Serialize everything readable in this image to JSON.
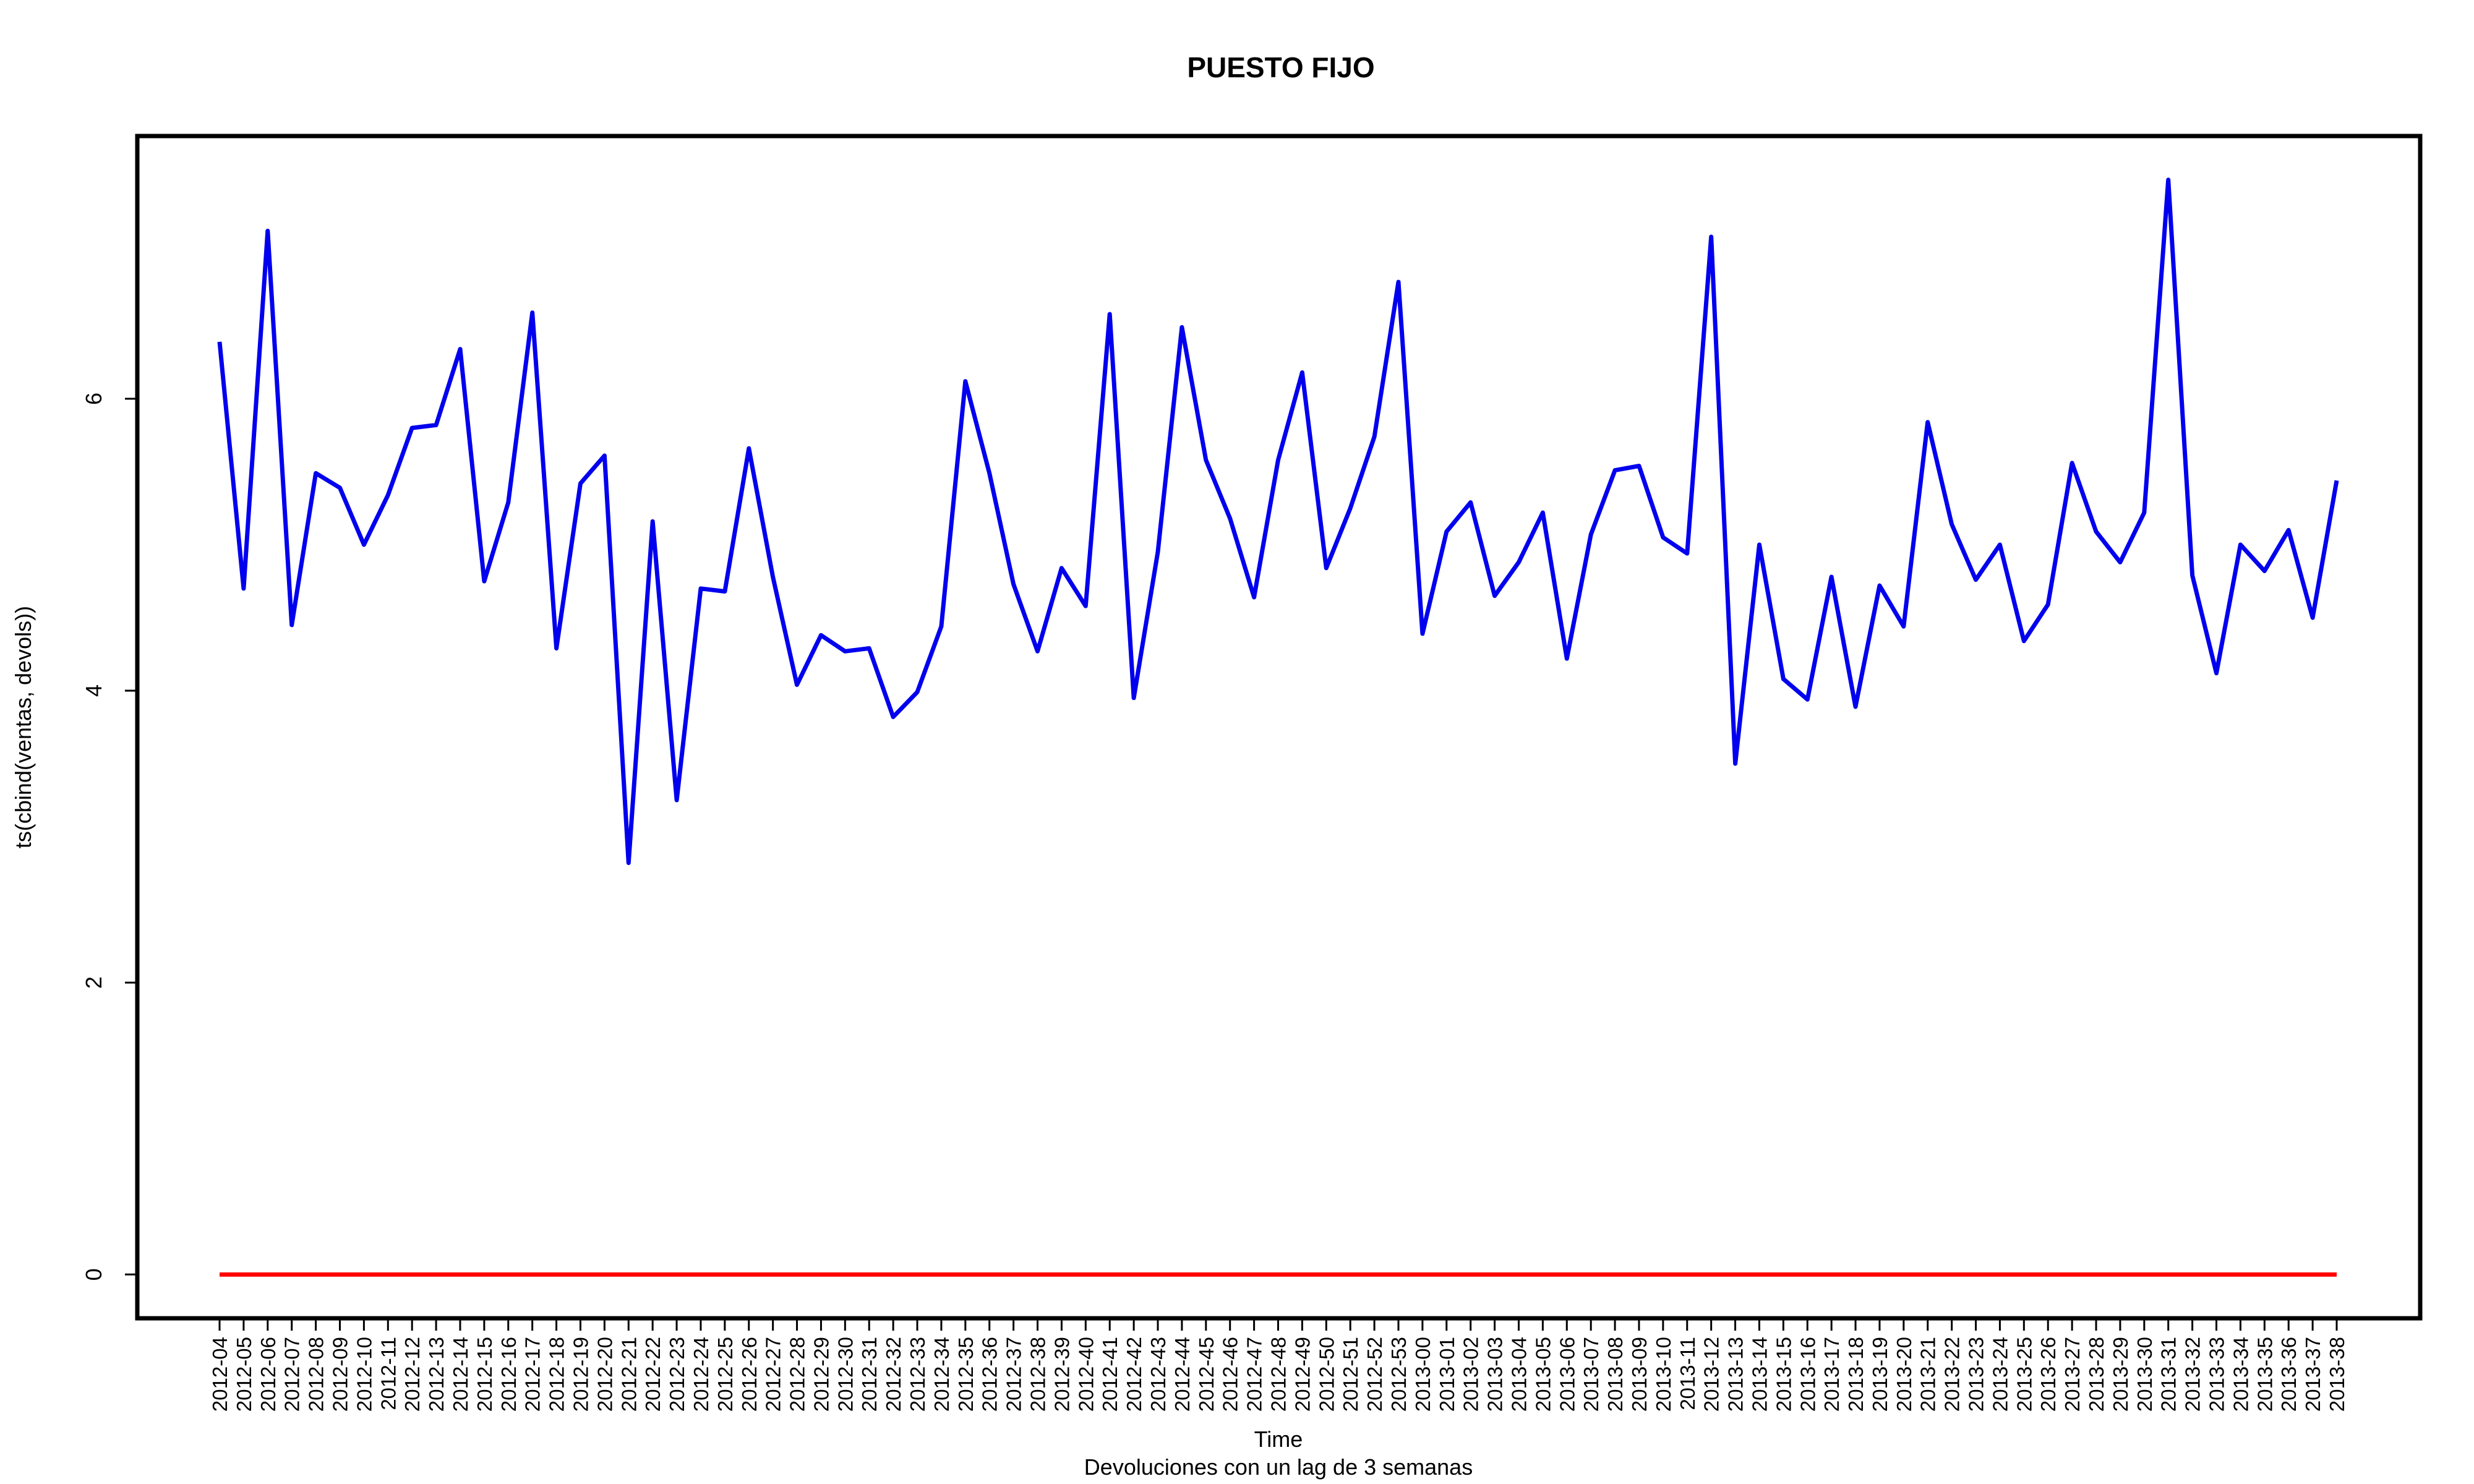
{
  "chart_data": {
    "type": "line",
    "title": "PUESTO FIJO",
    "xlabel": "Time",
    "ylabel": "ts(cbind(ventas, devols))",
    "subtitle": "Devoluciones con un lag de 3 semanas",
    "ylim": [
      -0.3,
      7.8
    ],
    "yticks": [
      0,
      2,
      4,
      6
    ],
    "grid": false,
    "categories": [
      "2012-04",
      "2012-05",
      "2012-06",
      "2012-07",
      "2012-08",
      "2012-09",
      "2012-10",
      "2012-11",
      "2012-12",
      "2012-13",
      "2012-14",
      "2012-15",
      "2012-16",
      "2012-17",
      "2012-18",
      "2012-19",
      "2012-20",
      "2012-21",
      "2012-22",
      "2012-23",
      "2012-24",
      "2012-25",
      "2012-26",
      "2012-27",
      "2012-28",
      "2012-29",
      "2012-30",
      "2012-31",
      "2012-32",
      "2012-33",
      "2012-34",
      "2012-35",
      "2012-36",
      "2012-37",
      "2012-38",
      "2012-39",
      "2012-40",
      "2012-41",
      "2012-42",
      "2012-43",
      "2012-44",
      "2012-45",
      "2012-46",
      "2012-47",
      "2012-48",
      "2012-49",
      "2012-50",
      "2012-51",
      "2012-52",
      "2012-53",
      "2013-00",
      "2013-01",
      "2013-02",
      "2013-03",
      "2013-04",
      "2013-05",
      "2013-06",
      "2013-07",
      "2013-08",
      "2013-09",
      "2013-10",
      "2013-11",
      "2013-12",
      "2013-13",
      "2013-14",
      "2013-15",
      "2013-16",
      "2013-17",
      "2013-18",
      "2013-19",
      "2013-20",
      "2013-21",
      "2013-22",
      "2013-23",
      "2013-24",
      "2013-25",
      "2013-26",
      "2013-27",
      "2013-28",
      "2013-29",
      "2013-30",
      "2013-31",
      "2013-32",
      "2013-33",
      "2013-34",
      "2013-35",
      "2013-36",
      "2013-37",
      "2013-38"
    ],
    "series": [
      {
        "name": "ventas",
        "color": "#0000ee",
        "values": [
          6.39,
          4.7,
          7.15,
          4.45,
          5.49,
          5.39,
          5.0,
          5.34,
          5.8,
          5.82,
          6.34,
          4.75,
          5.29,
          6.59,
          4.29,
          5.42,
          5.61,
          2.82,
          5.16,
          3.25,
          4.7,
          4.68,
          5.66,
          4.78,
          4.04,
          4.38,
          4.27,
          4.29,
          3.82,
          3.99,
          4.44,
          6.12,
          5.49,
          4.73,
          4.27,
          4.84,
          4.58,
          6.58,
          3.95,
          4.95,
          6.49,
          5.58,
          5.18,
          4.64,
          5.58,
          6.18,
          4.84,
          5.25,
          5.74,
          6.8,
          4.39,
          5.09,
          5.29,
          4.65,
          4.88,
          5.22,
          4.22,
          5.07,
          5.51,
          5.54,
          5.05,
          4.94,
          7.11,
          3.5,
          5.0,
          4.08,
          3.94,
          4.78,
          3.89,
          4.72,
          4.44,
          5.84,
          5.14,
          4.76,
          5.0,
          4.34,
          4.59,
          5.56,
          5.09,
          4.88,
          5.22,
          7.5,
          4.79,
          4.12,
          5.0,
          4.82,
          5.1,
          4.5,
          5.44
        ]
      },
      {
        "name": "devols",
        "color": "#ff0000",
        "values": [
          0,
          0,
          0,
          0,
          0,
          0,
          0,
          0,
          0,
          0,
          0,
          0,
          0,
          0,
          0,
          0,
          0,
          0,
          0,
          0,
          0,
          0,
          0,
          0,
          0,
          0,
          0,
          0,
          0,
          0,
          0,
          0,
          0,
          0,
          0,
          0,
          0,
          0,
          0,
          0,
          0,
          0,
          0,
          0,
          0,
          0,
          0,
          0,
          0,
          0,
          0,
          0,
          0,
          0,
          0,
          0,
          0,
          0,
          0,
          0,
          0,
          0,
          0,
          0,
          0,
          0,
          0,
          0,
          0,
          0,
          0,
          0,
          0,
          0,
          0,
          0,
          0,
          0,
          0,
          0,
          0,
          0,
          0,
          0,
          0,
          0,
          0,
          0,
          0
        ]
      }
    ]
  }
}
